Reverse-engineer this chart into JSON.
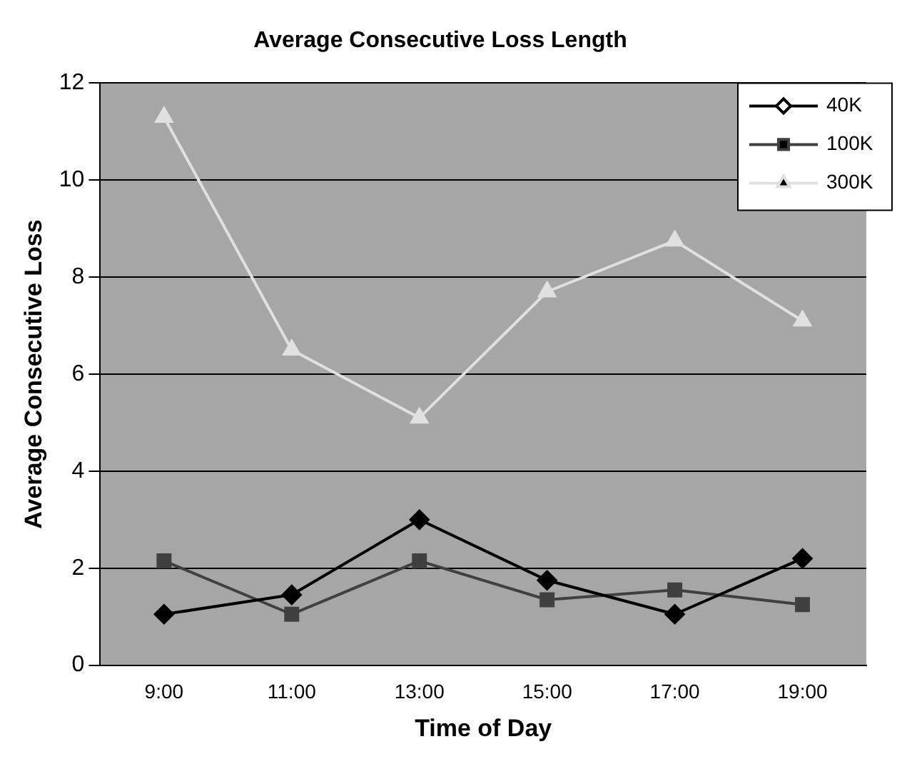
{
  "chart_data": {
    "type": "line",
    "title": "Average Consecutive Loss Length",
    "xlabel": "Time of Day",
    "ylabel": "Average Consecutive Loss",
    "categories": [
      "9:00",
      "11:00",
      "13:00",
      "15:00",
      "17:00",
      "19:00"
    ],
    "series": [
      {
        "name": "40K",
        "color": "#000000",
        "marker": "diamond",
        "values": [
          1.05,
          1.45,
          3.0,
          1.75,
          1.05,
          2.2
        ]
      },
      {
        "name": "100K",
        "color": "#404040",
        "marker": "square",
        "values": [
          2.15,
          1.05,
          2.15,
          1.35,
          1.55,
          1.25
        ]
      },
      {
        "name": "300K",
        "color": "#e0e0e0",
        "marker": "triangle",
        "values": [
          11.3,
          6.5,
          5.1,
          7.7,
          8.75,
          7.1
        ]
      }
    ],
    "ylim": [
      0,
      12
    ],
    "yticks": [
      0,
      2,
      4,
      6,
      8,
      10,
      12
    ],
    "grid": "y",
    "legend": "top right"
  }
}
